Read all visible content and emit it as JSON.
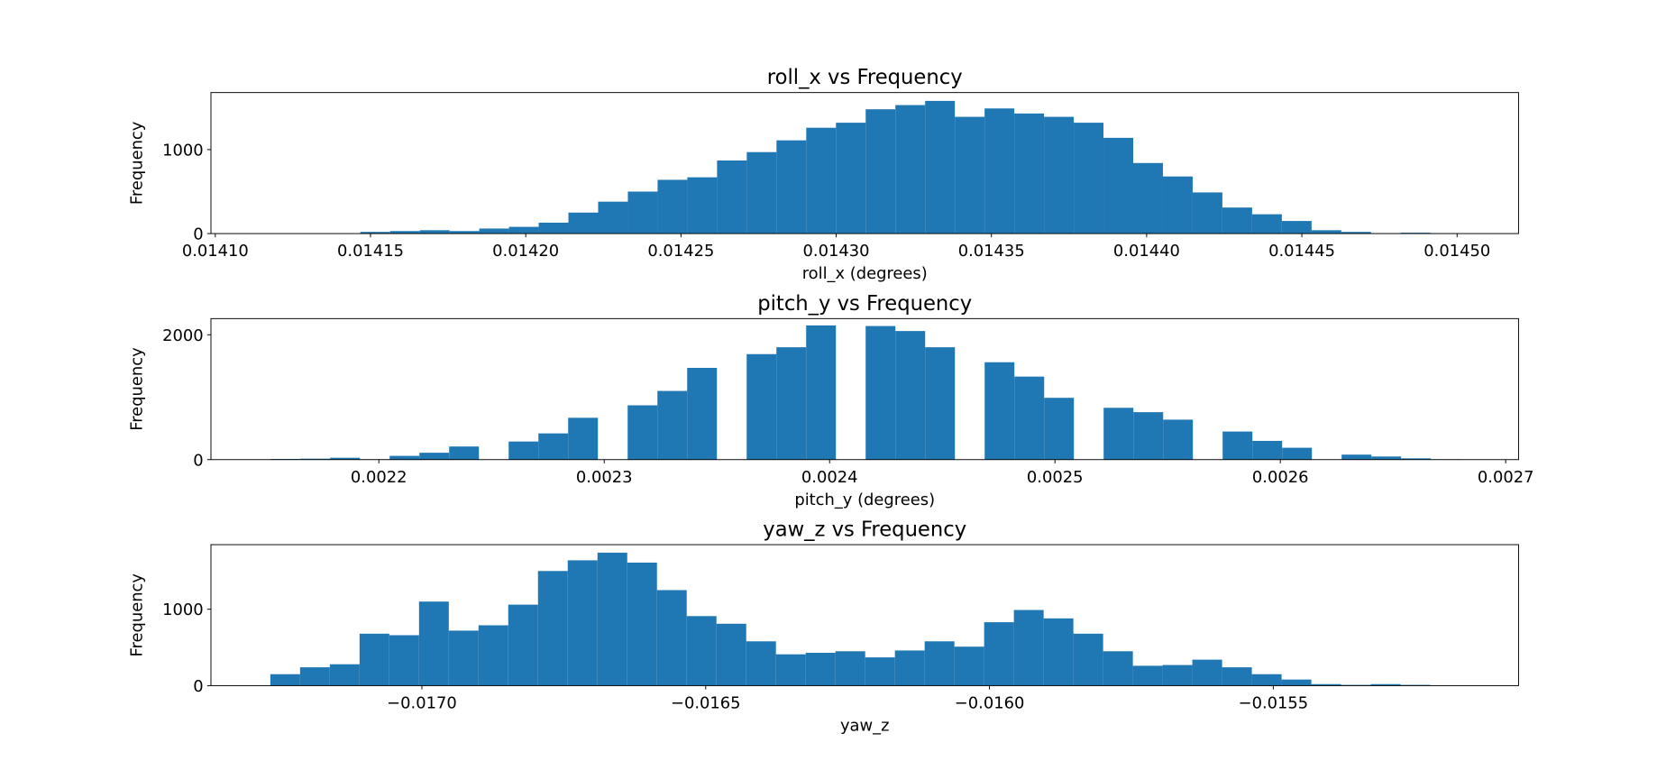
{
  "chart_data": [
    {
      "type": "histogram",
      "title": "roll_x vs Frequency",
      "x_label": "roll_x (degrees)",
      "y_label": "Frequency",
      "color": "#1f77b4",
      "bins": [
        0.014118,
        0.014127575,
        0.01413715,
        0.014146725,
        0.0141563,
        0.014165875,
        0.01417545,
        0.014185025,
        0.0141946,
        0.014204175,
        0.01421375,
        0.014223325,
        0.0142329,
        0.014242475,
        0.01425205,
        0.014261625,
        0.0142712,
        0.014280775,
        0.01429035,
        0.014299925,
        0.0143095,
        0.014319075,
        0.01432865,
        0.014338225,
        0.0143478,
        0.014357375,
        0.01436695,
        0.014376525,
        0.0143861,
        0.014395675,
        0.01440525,
        0.014414825,
        0.0144244,
        0.014433975,
        0.01444355,
        0.014453125,
        0.0144627,
        0.014472275,
        0.01448185,
        0.014491425,
        0.014501
      ],
      "values": [
        1,
        0,
        0,
        20,
        30,
        40,
        30,
        60,
        80,
        130,
        250,
        380,
        500,
        640,
        670,
        870,
        970,
        1110,
        1260,
        1320,
        1480,
        1530,
        1580,
        1390,
        1490,
        1430,
        1390,
        1320,
        1140,
        840,
        680,
        490,
        310,
        230,
        150,
        40,
        20,
        5,
        10,
        5
      ],
      "xlim": [
        0.0140986,
        0.0145198
      ],
      "ylim": [
        0,
        1679
      ],
      "xticks": [
        {
          "value": 0.0141,
          "label": "0.01410"
        },
        {
          "value": 0.01415,
          "label": "0.01415"
        },
        {
          "value": 0.0142,
          "label": "0.01420"
        },
        {
          "value": 0.01425,
          "label": "0.01425"
        },
        {
          "value": 0.0143,
          "label": "0.01430"
        },
        {
          "value": 0.01435,
          "label": "0.01435"
        },
        {
          "value": 0.0144,
          "label": "0.01440"
        },
        {
          "value": 0.01445,
          "label": "0.01445"
        },
        {
          "value": 0.0145,
          "label": "0.01450"
        }
      ],
      "yticks": [
        0,
        1000
      ]
    },
    {
      "type": "histogram",
      "title": "pitch_y vs Frequency",
      "x_label": "pitch_y (degrees)",
      "y_label": "Frequency",
      "color": "#1f77b4",
      "bins": [
        0.002152,
        0.0021652,
        0.0021784,
        0.0021916,
        0.0022048,
        0.002218,
        0.0022312,
        0.0022444,
        0.0022576,
        0.0022708,
        0.002284,
        0.0022972,
        0.0023104,
        0.0023236,
        0.0023368,
        0.00235,
        0.0023632,
        0.0023764,
        0.0023896,
        0.0024028,
        0.002416,
        0.0024292,
        0.0024424,
        0.0024556,
        0.0024688,
        0.002482,
        0.0024952,
        0.0025084,
        0.0025216,
        0.0025348,
        0.002548,
        0.0025612,
        0.0025744,
        0.0025876,
        0.0026008,
        0.002614,
        0.0026272,
        0.0026404,
        0.0026536,
        0.0026668,
        0.00268
      ],
      "values": [
        10,
        15,
        30,
        5,
        60,
        110,
        210,
        0,
        290,
        420,
        670,
        0,
        870,
        1100,
        1470,
        0,
        1690,
        1800,
        2150,
        0,
        2140,
        2060,
        1800,
        0,
        1560,
        1330,
        990,
        0,
        830,
        760,
        640,
        0,
        450,
        300,
        190,
        0,
        80,
        50,
        20,
        5
      ],
      "xlim": [
        0.0021255,
        0.0027057
      ],
      "ylim": [
        0,
        2259
      ],
      "xticks": [
        0.0022,
        0.0023,
        0.0024,
        0.0025,
        0.0026,
        0.0027
      ],
      "yticks": [
        0,
        2000
      ]
    },
    {
      "type": "histogram",
      "title": "yaw_z vs Frequency",
      "x_label": "yaw_z",
      "y_label": "Frequency",
      "color": "#1f77b4",
      "bins": [
        -0.017267,
        -0.0172146,
        -0.0171622,
        -0.0171098,
        -0.0170574,
        -0.017005,
        -0.0169526,
        -0.0169002,
        -0.0168478,
        -0.0167954,
        -0.016743,
        -0.0166906,
        -0.0166382,
        -0.0165858,
        -0.0165334,
        -0.016481,
        -0.0164286,
        -0.0163762,
        -0.0163238,
        -0.0162714,
        -0.016219,
        -0.0161666,
        -0.0161142,
        -0.0160618,
        -0.0160094,
        -0.015957,
        -0.0159046,
        -0.0158522,
        -0.0157998,
        -0.0157474,
        -0.015695,
        -0.0156426,
        -0.0155902,
        -0.0155378,
        -0.0154854,
        -0.015433,
        -0.0153806,
        -0.0153282,
        -0.0152758,
        -0.0152234,
        -0.015171
      ],
      "values": [
        150,
        240,
        280,
        680,
        660,
        1100,
        720,
        790,
        1060,
        1500,
        1640,
        1740,
        1610,
        1250,
        910,
        810,
        580,
        410,
        430,
        450,
        370,
        460,
        580,
        510,
        830,
        990,
        880,
        680,
        450,
        260,
        270,
        340,
        240,
        150,
        80,
        20,
        10,
        20,
        10,
        5
      ],
      "xlim": [
        -0.0173716,
        -0.0150679
      ],
      "ylim": [
        0,
        1845
      ],
      "xticks": [
        {
          "value": -0.017,
          "label": "−0.0170"
        },
        {
          "value": -0.0165,
          "label": "−0.0165"
        },
        {
          "value": -0.016,
          "label": "−0.0160"
        },
        {
          "value": -0.0155,
          "label": "−0.0155"
        }
      ],
      "yticks": [
        0,
        1000
      ]
    }
  ]
}
